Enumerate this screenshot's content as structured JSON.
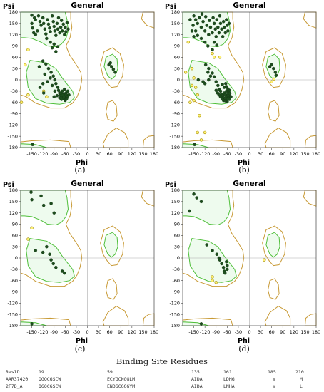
{
  "panels": [
    {
      "id": "a",
      "title": "General",
      "xlabel": "Phi",
      "ylabel": "Psi",
      "caption": "(a)",
      "ticks_x": [
        "-150",
        "-120",
        "-90",
        "-60",
        "-30",
        "0",
        "30",
        "60",
        "90",
        "120",
        "150",
        "180"
      ],
      "ticks_y": [
        "180",
        "150",
        "120",
        "90",
        "60",
        "30",
        "0",
        "-30",
        "-60",
        "-90",
        "-120",
        "-150",
        "-180"
      ],
      "points_favored": [
        [
          -150,
          172
        ],
        [
          -143,
          165
        ],
        [
          -150,
          150
        ],
        [
          -148,
          138
        ],
        [
          -140,
          160
        ],
        [
          -132,
          170
        ],
        [
          -128,
          155
        ],
        [
          -125,
          145
        ],
        [
          -120,
          165
        ],
        [
          -118,
          150
        ],
        [
          -115,
          135
        ],
        [
          -112,
          122
        ],
        [
          -108,
          160
        ],
        [
          -105,
          148
        ],
        [
          -102,
          138
        ],
        [
          -100,
          128
        ],
        [
          -95,
          170
        ],
        [
          -92,
          155
        ],
        [
          -90,
          142
        ],
        [
          -88,
          130
        ],
        [
          -85,
          118
        ],
        [
          -82,
          150
        ],
        [
          -80,
          135
        ],
        [
          -78,
          165
        ],
        [
          -75,
          125
        ],
        [
          -72,
          140
        ],
        [
          -70,
          158
        ],
        [
          -68,
          130
        ],
        [
          -65,
          148
        ],
        [
          -62,
          120
        ],
        [
          -60,
          140
        ],
        [
          -58,
          128
        ],
        [
          -55,
          152
        ],
        [
          -52,
          135
        ],
        [
          -110,
          110
        ],
        [
          -100,
          100
        ],
        [
          -95,
          85
        ],
        [
          -90,
          95
        ],
        [
          -85,
          75
        ],
        [
          -80,
          88
        ],
        [
          -140,
          120
        ],
        [
          -135,
          130
        ],
        [
          -145,
          125
        ],
        [
          -120,
          50
        ],
        [
          -112,
          42
        ],
        [
          -105,
          30
        ],
        [
          -98,
          20
        ],
        [
          -92,
          10
        ],
        [
          -88,
          0
        ],
        [
          -85,
          -10
        ],
        [
          -80,
          -20
        ],
        [
          -78,
          -28
        ],
        [
          -75,
          -35
        ],
        [
          -72,
          -40
        ],
        [
          -70,
          -45
        ],
        [
          -68,
          -30
        ],
        [
          -65,
          -38
        ],
        [
          -63,
          -42
        ],
        [
          -60,
          -48
        ],
        [
          -58,
          -35
        ],
        [
          -57,
          -40
        ],
        [
          -55,
          -45
        ],
        [
          -53,
          -30
        ],
        [
          -62,
          -25
        ],
        [
          -66,
          -50
        ],
        [
          -70,
          -52
        ],
        [
          -75,
          -48
        ],
        [
          -82,
          -42
        ],
        [
          -88,
          -30
        ],
        [
          -95,
          -15
        ],
        [
          -100,
          5
        ],
        [
          -108,
          -5
        ],
        [
          -115,
          15
        ],
        [
          -128,
          -20
        ],
        [
          -120,
          -10
        ],
        [
          -60,
          -55
        ],
        [
          -64,
          -45
        ],
        [
          -68,
          -40
        ],
        [
          -72,
          -35
        ],
        [
          -50,
          -40
        ],
        [
          -56,
          -50
        ],
        [
          -130,
          35
        ],
        [
          -118,
          -35
        ],
        [
          -90,
          -45
        ],
        [
          62,
          45
        ],
        [
          65,
          35
        ],
        [
          70,
          28
        ],
        [
          75,
          20
        ],
        [
          58,
          40
        ],
        [
          -148,
          -172
        ]
      ],
      "points_outlier": [
        [
          -178,
          -60
        ],
        [
          -118,
          -30
        ],
        [
          -110,
          -45
        ],
        [
          -168,
          40
        ],
        [
          -160,
          -40
        ],
        [
          -160,
          80
        ]
      ]
    },
    {
      "id": "b",
      "title": "General",
      "xlabel": "Phi",
      "ylabel": "Psi",
      "caption": "(b)",
      "ticks_x": [
        "-150",
        "-120",
        "-90",
        "-60",
        "-30",
        "0",
        "30",
        "60",
        "90",
        "120",
        "150",
        "180"
      ],
      "ticks_y": [
        "180",
        "150",
        "120",
        "90",
        "60",
        "30",
        "0",
        "-30",
        "-60",
        "-90",
        "-120",
        "-150",
        "-180"
      ],
      "points_favored": [
        [
          -150,
          170
        ],
        [
          -145,
          160
        ],
        [
          -152,
          145
        ],
        [
          -140,
          150
        ],
        [
          -135,
          165
        ],
        [
          -130,
          140
        ],
        [
          -125,
          155
        ],
        [
          -120,
          130
        ],
        [
          -118,
          168
        ],
        [
          -115,
          145
        ],
        [
          -110,
          120
        ],
        [
          -108,
          158
        ],
        [
          -105,
          140
        ],
        [
          -100,
          125
        ],
        [
          -98,
          165
        ],
        [
          -95,
          150
        ],
        [
          -92,
          135
        ],
        [
          -90,
          115
        ],
        [
          -88,
          160
        ],
        [
          -85,
          140
        ],
        [
          -82,
          125
        ],
        [
          -80,
          170
        ],
        [
          -78,
          150
        ],
        [
          -75,
          135
        ],
        [
          -72,
          115
        ],
        [
          -70,
          155
        ],
        [
          -68,
          140
        ],
        [
          -65,
          125
        ],
        [
          -62,
          160
        ],
        [
          -60,
          145
        ],
        [
          -58,
          130
        ],
        [
          -55,
          150
        ],
        [
          -145,
          130
        ],
        [
          -140,
          118
        ],
        [
          -130,
          110
        ],
        [
          -120,
          100
        ],
        [
          -112,
          90
        ],
        [
          -100,
          80
        ],
        [
          -95,
          100
        ],
        [
          -88,
          92
        ],
        [
          -150,
          115
        ],
        [
          -160,
          160
        ],
        [
          -155,
          130
        ],
        [
          -128,
          175
        ],
        [
          -118,
          40
        ],
        [
          -110,
          30
        ],
        [
          -100,
          18
        ],
        [
          -95,
          8
        ],
        [
          -90,
          -5
        ],
        [
          -85,
          -15
        ],
        [
          -82,
          -25
        ],
        [
          -78,
          -30
        ],
        [
          -75,
          -38
        ],
        [
          -72,
          -42
        ],
        [
          -70,
          -48
        ],
        [
          -68,
          -35
        ],
        [
          -65,
          -40
        ],
        [
          -63,
          -45
        ],
        [
          -62,
          -30
        ],
        [
          -60,
          -50
        ],
        [
          -58,
          -38
        ],
        [
          -57,
          -42
        ],
        [
          -56,
          -33
        ],
        [
          -55,
          -47
        ],
        [
          -54,
          -28
        ],
        [
          -53,
          -36
        ],
        [
          -52,
          -44
        ],
        [
          -66,
          -52
        ],
        [
          -70,
          -55
        ],
        [
          -74,
          -50
        ],
        [
          -78,
          -45
        ],
        [
          -82,
          -40
        ],
        [
          -86,
          -35
        ],
        [
          -90,
          -28
        ],
        [
          -68,
          -20
        ],
        [
          -62,
          -18
        ],
        [
          -58,
          -24
        ],
        [
          -64,
          -10
        ],
        [
          -73,
          -12
        ],
        [
          -120,
          -10
        ],
        [
          -110,
          0
        ],
        [
          -105,
          10
        ],
        [
          -60,
          -58
        ],
        [
          -54,
          -52
        ],
        [
          -50,
          -45
        ],
        [
          -65,
          -56
        ],
        [
          -112,
          20
        ],
        [
          -125,
          -5
        ],
        [
          -138,
          0
        ],
        [
          60,
          40
        ],
        [
          65,
          30
        ],
        [
          70,
          20
        ],
        [
          72,
          12
        ],
        [
          55,
          35
        ],
        [
          -148,
          -172
        ]
      ],
      "points_outlier": [
        [
          -150,
          5
        ],
        [
          -145,
          -20
        ],
        [
          -155,
          30
        ],
        [
          -150,
          -55
        ],
        [
          -135,
          -95
        ],
        [
          -140,
          -140
        ],
        [
          -120,
          -140
        ],
        [
          -130,
          -160
        ],
        [
          -100,
          70
        ],
        [
          -95,
          60
        ],
        [
          -165,
          100
        ],
        [
          -80,
          60
        ],
        [
          -172,
          20
        ],
        [
          -155,
          -15
        ],
        [
          -140,
          -40
        ],
        [
          -160,
          -60
        ],
        [
          60,
          -5
        ],
        [
          66,
          2
        ]
      ]
    },
    {
      "id": "c",
      "title": "General",
      "xlabel": "Phi",
      "ylabel": "Psi",
      "caption": "(c)",
      "ticks_x": [
        "-150",
        "-120",
        "-90",
        "-60",
        "-30",
        "0",
        "30",
        "60",
        "90",
        "120",
        "150",
        "180"
      ],
      "ticks_y": [
        "180",
        "150",
        "120",
        "90",
        "60",
        "30",
        "0",
        "-30",
        "-60",
        "-90",
        "-120",
        "-150",
        "-180"
      ],
      "points_favored": [
        [
          -152,
          175
        ],
        [
          -150,
          155
        ],
        [
          -125,
          165
        ],
        [
          -118,
          140
        ],
        [
          -98,
          145
        ],
        [
          -90,
          120
        ],
        [
          -140,
          20
        ],
        [
          -120,
          15
        ],
        [
          -110,
          30
        ],
        [
          -102,
          10
        ],
        [
          -98,
          -5
        ],
        [
          -92,
          -15
        ],
        [
          -85,
          -25
        ],
        [
          -68,
          -35
        ],
        [
          -62,
          -40
        ],
        [
          -150,
          -175
        ]
      ],
      "points_outlier": [
        [
          -150,
          80
        ],
        [
          -160,
          50
        ]
      ]
    },
    {
      "id": "d",
      "title": "General",
      "xlabel": "Phi",
      "ylabel": "Psi",
      "caption": "(d)",
      "ticks_x": [
        "-150",
        "-120",
        "-90",
        "-60",
        "-30",
        "0",
        "30",
        "60",
        "90",
        "120",
        "150",
        "180"
      ],
      "ticks_y": [
        "180",
        "150",
        "120",
        "90",
        "60",
        "30",
        "0",
        "-30",
        "-60",
        "-90",
        "-120",
        "-150",
        "-180"
      ],
      "points_favored": [
        [
          -150,
          170
        ],
        [
          -142,
          160
        ],
        [
          -130,
          150
        ],
        [
          -162,
          125
        ],
        [
          -115,
          35
        ],
        [
          -100,
          20
        ],
        [
          -88,
          10
        ],
        [
          -82,
          0
        ],
        [
          -80,
          -5
        ],
        [
          -75,
          -15
        ],
        [
          -70,
          -25
        ],
        [
          -68,
          -35
        ],
        [
          -66,
          -40
        ],
        [
          -62,
          -10
        ],
        [
          -60,
          -20
        ],
        [
          -60,
          -30
        ],
        [
          -130,
          -175
        ]
      ],
      "points_outlier": [
        [
          -100,
          -60
        ],
        [
          -90,
          -65
        ],
        [
          -100,
          -50
        ],
        [
          40,
          -5
        ]
      ]
    }
  ],
  "table": {
    "title": "Binding Site Residues",
    "rows": [
      [
        "ResID",
        "19",
        "59",
        "135",
        "161",
        "185",
        "210"
      ],
      [
        "AAR37420",
        "QGQCGSCW",
        "ECYGCNGGLM",
        "AIDA",
        "LDHG",
        "W",
        "M"
      ],
      [
        "2F7D_A",
        "QGQCGSCW",
        "ENDGCGGGYM",
        "AIDA",
        "LNHA",
        "W",
        "L"
      ]
    ]
  },
  "colors": {
    "favored_contour": "#4fbf3a",
    "allowed_contour": "#c89a35",
    "favored_fill": "#eefbee",
    "point_fill": "#1d4d1d",
    "outlier_fill": "#fff173",
    "outlier_stroke": "#a08a00"
  }
}
